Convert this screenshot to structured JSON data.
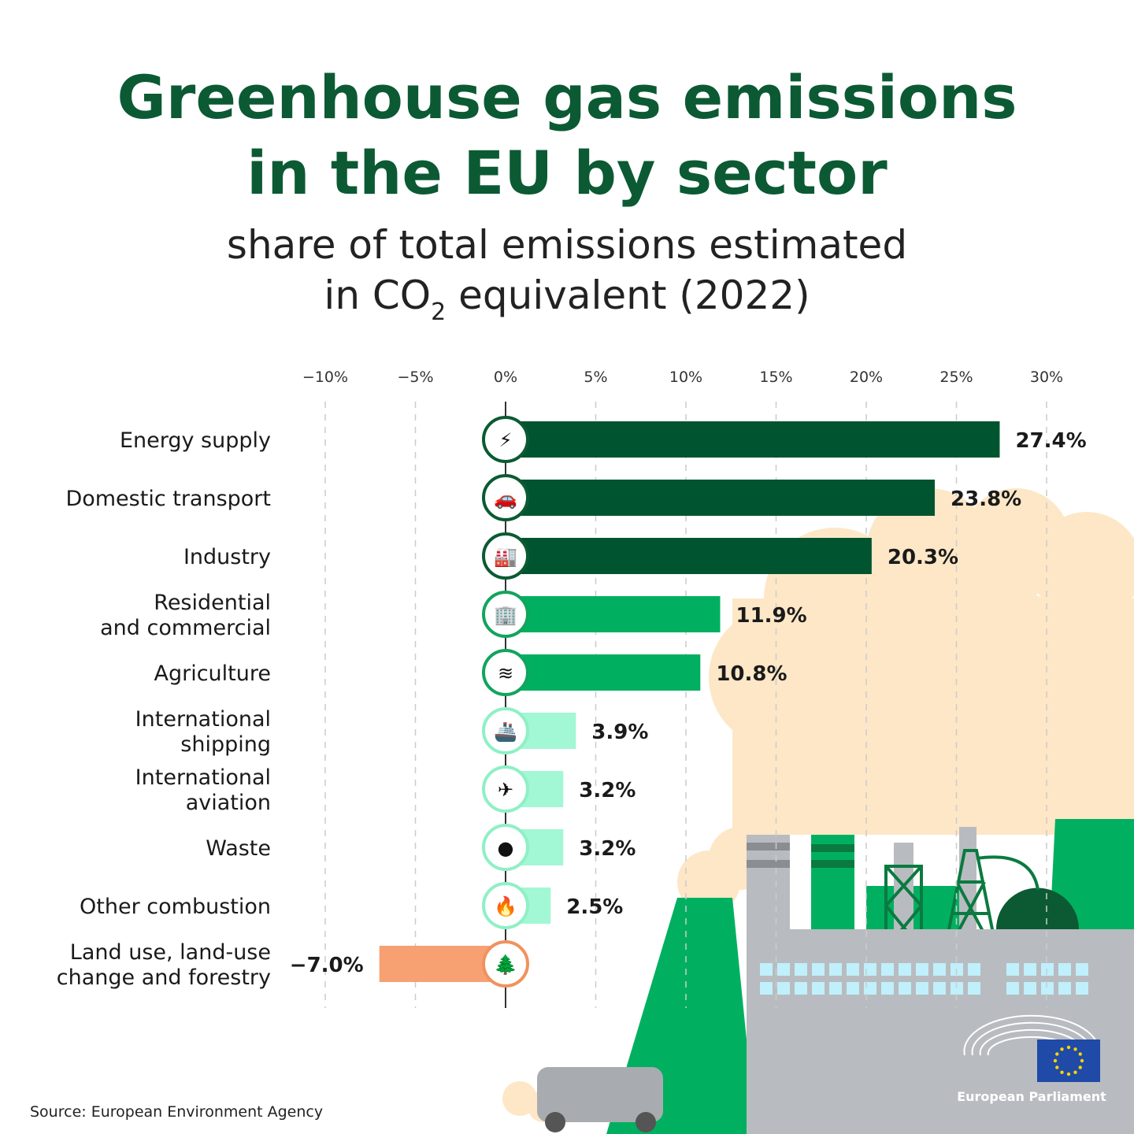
{
  "title": [
    "Greenhouse gas emissions",
    "in the EU by sector"
  ],
  "subtitle": {
    "line1": "share of total emissions estimated",
    "line2_pre": "in CO",
    "line2_sub": "2",
    "line2_post": " equivalent (2022)"
  },
  "source": "Source: European Environment Agency",
  "logo": {
    "text": "European Parliament"
  },
  "colors": {
    "title": "#0b5a33",
    "dark_green": "#00542f",
    "mid_green": "#00b060",
    "light_green": "#a2f7d4",
    "orange": "#f7a072",
    "smoke": "#fde7c7",
    "factory_grey": "#b8bcc0"
  },
  "chart_data": {
    "type": "bar",
    "orientation": "horizontal",
    "xlim": [
      -10,
      30
    ],
    "xticks": [
      -10,
      -5,
      0,
      5,
      10,
      15,
      20,
      25,
      30
    ],
    "tick_labels": [
      "−10%",
      "−5%",
      "0%",
      "5%",
      "10%",
      "15%",
      "20%",
      "25%",
      "30%"
    ],
    "grid": true,
    "categories": [
      [
        "Energy supply"
      ],
      [
        "Domestic transport"
      ],
      [
        "Industry"
      ],
      [
        "Residential",
        "and commercial"
      ],
      [
        "Agriculture"
      ],
      [
        "International",
        "shipping"
      ],
      [
        "International",
        "aviation"
      ],
      [
        "Waste"
      ],
      [
        "Other combustion"
      ],
      [
        "Land use, land-use",
        "change and forestry"
      ]
    ],
    "values": [
      27.4,
      23.8,
      20.3,
      11.9,
      10.8,
      3.9,
      3.2,
      3.2,
      2.5,
      -7.0
    ],
    "labels": [
      "27.4%",
      "23.8%",
      "20.3%",
      "11.9%",
      "10.8%",
      "3.9%",
      "3.2%",
      "3.2%",
      "2.5%",
      "−7.0%"
    ],
    "bar_colors": [
      "#00542f",
      "#00542f",
      "#00542f",
      "#00b060",
      "#00b060",
      "#a2f7d4",
      "#a2f7d4",
      "#a2f7d4",
      "#a2f7d4",
      "#f7a072"
    ],
    "icons": [
      "lightning-icon",
      "car-icon",
      "factory-icon",
      "building-icon",
      "field-icon",
      "ship-icon",
      "airplane-icon",
      "trash-bag-icon",
      "flame-icon",
      "tree-icon"
    ]
  }
}
